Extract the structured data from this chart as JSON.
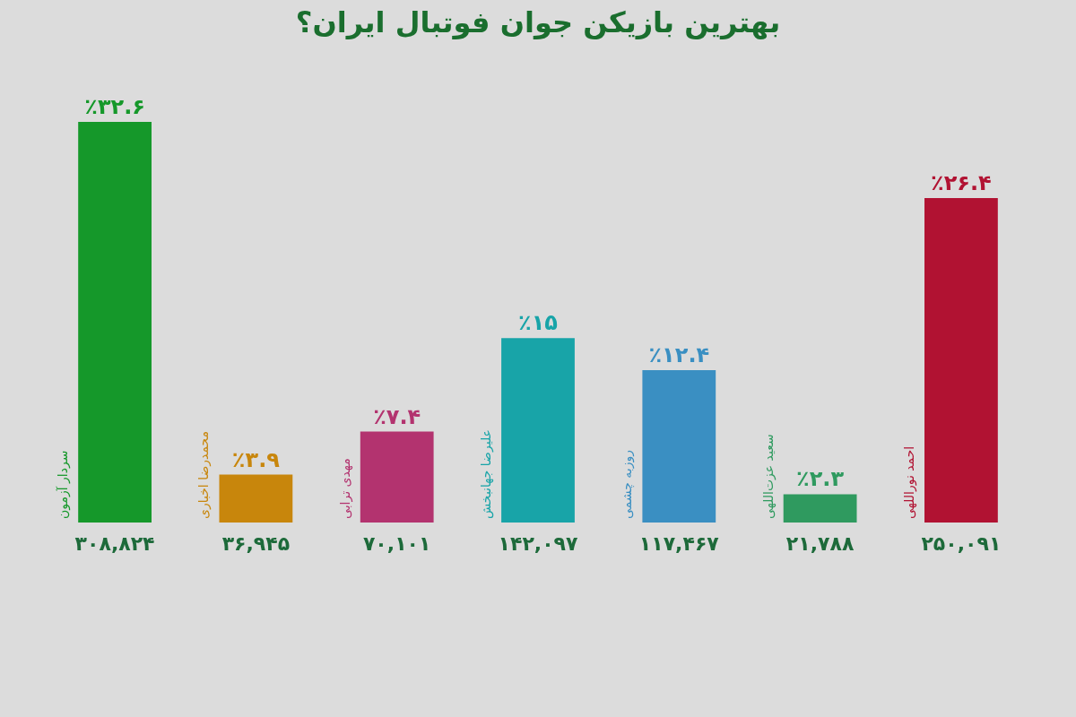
{
  "chart_data": {
    "type": "bar",
    "title": "بهترین بازیکن جوان فوتبال ایران؟",
    "categories": [
      "سردار آزمون",
      "محمدرضا اخباری",
      "مهدی ترابی",
      "علیرضا جهانبخش",
      "روزبه چشمی",
      "سعید عزت‌اللهی",
      "احمد نوراللهی"
    ],
    "values": [
      32.6,
      3.9,
      7.4,
      15,
      12.4,
      2.3,
      26.4
    ],
    "colors": [
      "#15982a",
      "#c8860c",
      "#b3336f",
      "#18a4a8",
      "#3a8fc2",
      "#2f9a5f",
      "#b11232"
    ],
    "value_labels": [
      "٪۳۲.۶",
      "٪۳.۹",
      "٪۷.۴",
      "٪۱۵",
      "٪۱۲.۴",
      "٪۲.۳",
      "٪۲۶.۴"
    ],
    "annotations": [
      "۳۰۸,۸۲۴",
      "۳۶,۹۴۵",
      "۷۰,۱۰۱",
      "۱۴۲,۰۹۷",
      "۱۱۷,۴۶۷",
      "۲۱,۷۸۸",
      "۲۵۰,۰۹۱"
    ]
  }
}
